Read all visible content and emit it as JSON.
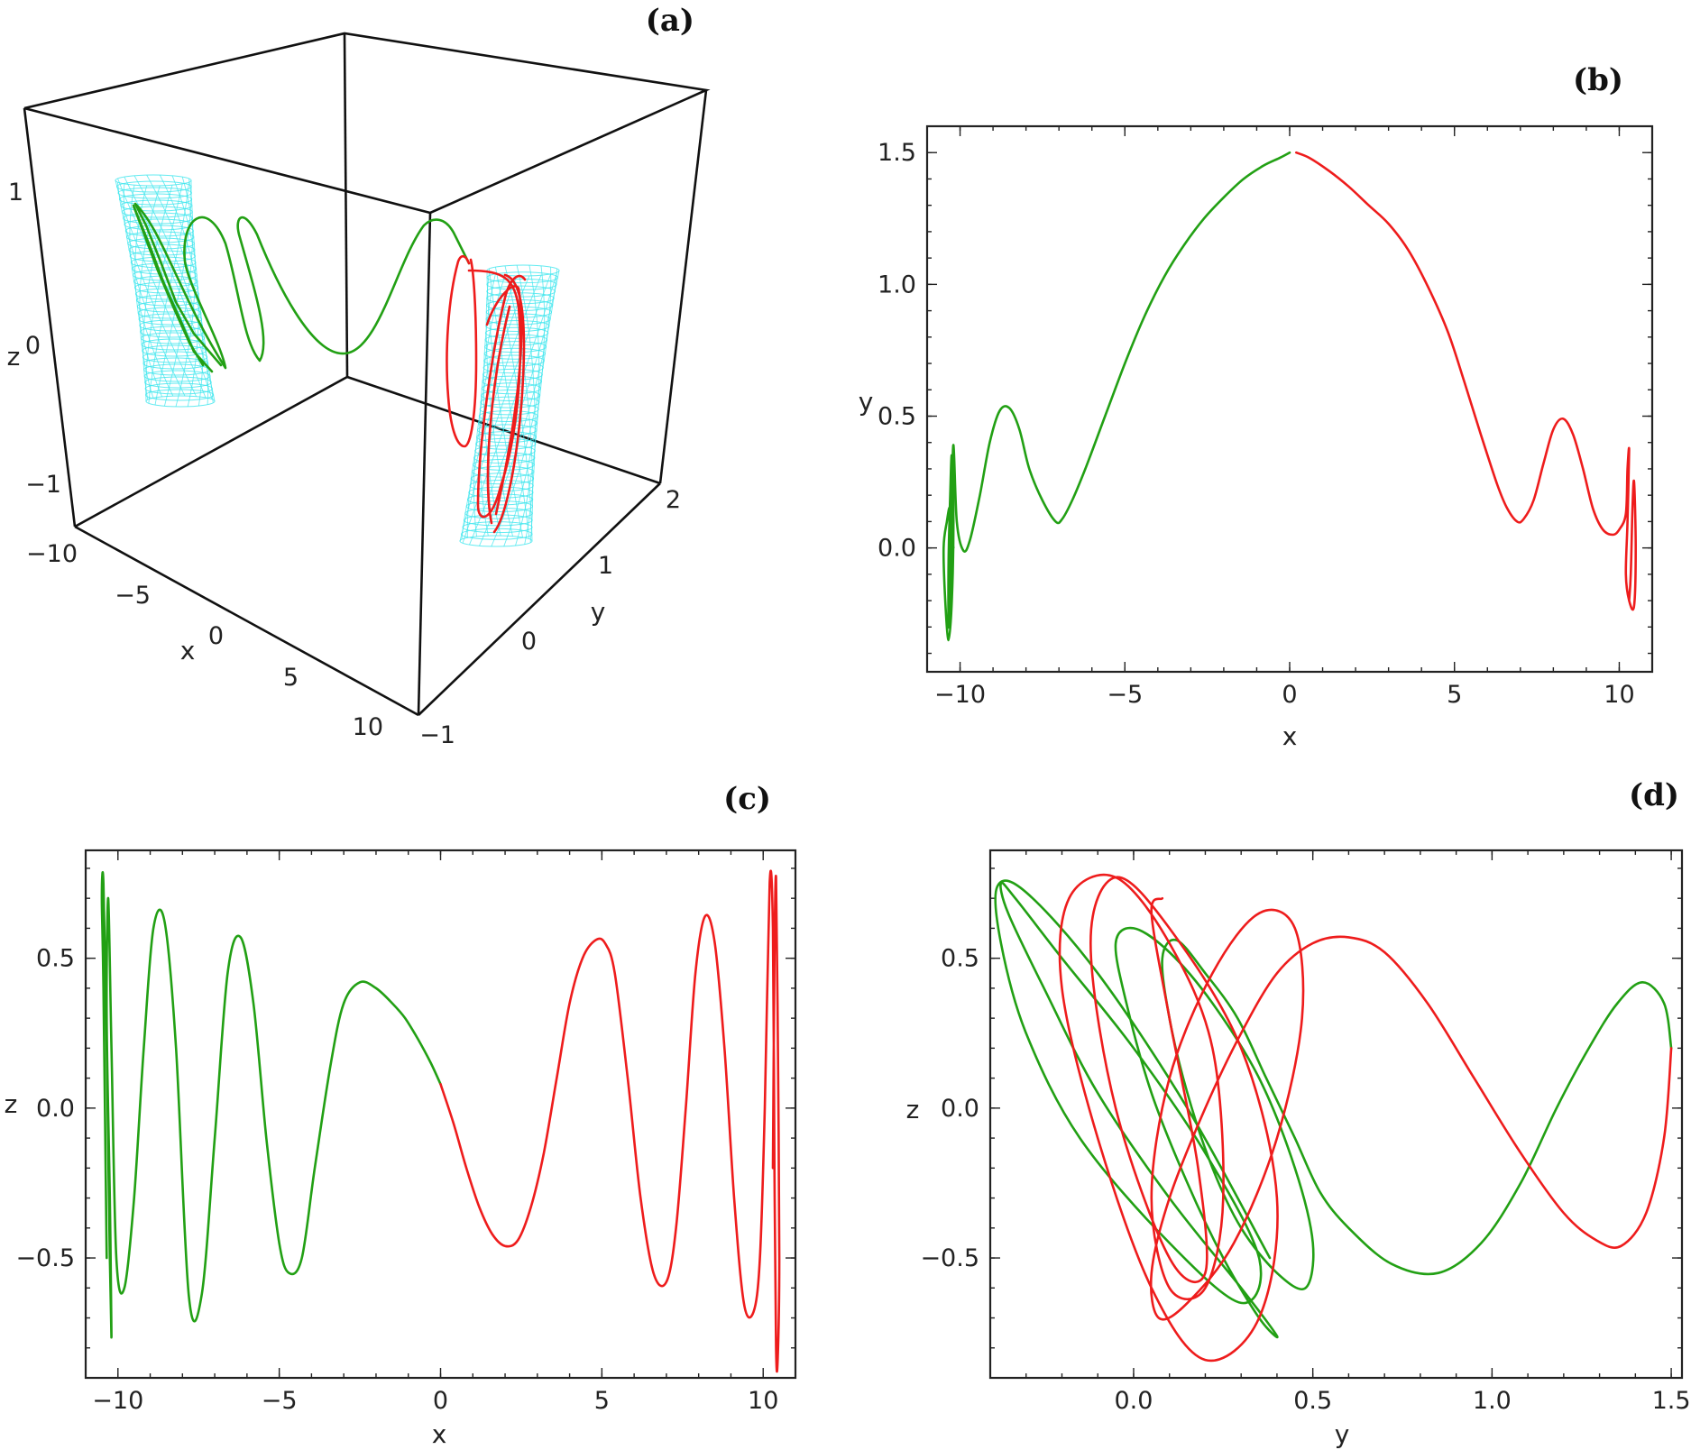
{
  "colors": {
    "green": "#22a014",
    "red": "#ee1c1c",
    "cyan": "#3de6ee"
  },
  "chart_data": [
    {
      "id": "a",
      "panel_label": "(a)",
      "type": "line",
      "projection": "3d",
      "xlabel": "x",
      "ylabel": "y",
      "zlabel": "z",
      "x_ticks": [
        "−10",
        "−5",
        "0",
        "5",
        "10"
      ],
      "y_ticks": [
        "−1",
        "0",
        "1",
        "2"
      ],
      "z_ticks": [
        "−1",
        "0",
        "1"
      ],
      "series": [
        {
          "color": "green",
          "description": "trajectory from x=-10 to x=0"
        },
        {
          "color": "red",
          "description": "trajectory from x=0 to x=10"
        }
      ],
      "surfaces": [
        {
          "color": "cyan",
          "shape": "mesh",
          "x": -10
        },
        {
          "color": "cyan",
          "shape": "mesh",
          "x": 10
        }
      ]
    },
    {
      "id": "b",
      "panel_label": "(b)",
      "type": "line",
      "xlabel": "x",
      "ylabel": "y",
      "xlim": [
        -11,
        11
      ],
      "ylim": [
        -0.47,
        1.6
      ],
      "x_ticks": [
        {
          "v": -10,
          "t": "−10"
        },
        {
          "v": -5,
          "t": "−5"
        },
        {
          "v": 0,
          "t": "0"
        },
        {
          "v": 5,
          "t": "5"
        },
        {
          "v": 10,
          "t": "10"
        }
      ],
      "y_ticks": [
        {
          "v": 0,
          "t": "0.0"
        },
        {
          "v": 0.5,
          "t": "0.5"
        },
        {
          "v": 1,
          "t": "1.0"
        },
        {
          "v": 1.5,
          "t": "1.5"
        }
      ],
      "series": [
        {
          "color": "green",
          "x": [
            -10.2,
            -10.3,
            -10.4,
            -10.5,
            -10.45,
            -10.35,
            -10.25,
            -10.2,
            -10.25,
            -10.3,
            -10.35,
            -10.35,
            -10.3,
            -10.25,
            -10.2,
            -10.1,
            -9.9,
            -9.7,
            -9.4,
            -9.1,
            -8.8,
            -8.5,
            -8.2,
            -7.9,
            -7.5,
            -7.1,
            -6.9,
            -6.6,
            -6.2,
            -5.6,
            -5.0,
            -4.4,
            -3.8,
            -3.2,
            -2.6,
            -2.0,
            -1.4,
            -0.8,
            -0.3,
            0.0
          ],
          "y": [
            0.0,
            0.15,
            0.1,
            0.0,
            -0.2,
            -0.35,
            -0.2,
            0.1,
            0.35,
            0.2,
            -0.05,
            -0.3,
            -0.15,
            0.15,
            0.39,
            0.1,
            -0.01,
            0.03,
            0.2,
            0.4,
            0.52,
            0.53,
            0.45,
            0.3,
            0.18,
            0.1,
            0.11,
            0.18,
            0.3,
            0.5,
            0.7,
            0.88,
            1.03,
            1.15,
            1.25,
            1.33,
            1.4,
            1.45,
            1.48,
            1.5
          ]
        },
        {
          "color": "red",
          "x": [
            0.2,
            0.6,
            1.2,
            1.8,
            2.4,
            3.0,
            3.6,
            4.2,
            4.8,
            5.3,
            5.8,
            6.3,
            6.6,
            6.9,
            7.1,
            7.4,
            7.7,
            8.0,
            8.3,
            8.6,
            8.9,
            9.2,
            9.5,
            9.8,
            10.0,
            10.2,
            10.25,
            10.3,
            10.25,
            10.2,
            10.3,
            10.45,
            10.5,
            10.45,
            10.4,
            10.35,
            10.3
          ],
          "y": [
            1.5,
            1.48,
            1.43,
            1.37,
            1.3,
            1.23,
            1.13,
            0.99,
            0.82,
            0.63,
            0.43,
            0.24,
            0.15,
            0.1,
            0.11,
            0.18,
            0.32,
            0.45,
            0.49,
            0.43,
            0.3,
            0.15,
            0.07,
            0.05,
            0.07,
            0.13,
            0.3,
            0.37,
            0.1,
            -0.1,
            -0.2,
            -0.22,
            0.0,
            0.25,
            0.15,
            -0.1,
            -0.2
          ]
        }
      ]
    },
    {
      "id": "c",
      "panel_label": "(c)",
      "type": "line",
      "xlabel": "x",
      "ylabel": "z",
      "xlim": [
        -11,
        11
      ],
      "ylim": [
        -0.9,
        0.86
      ],
      "x_ticks": [
        {
          "v": -10,
          "t": "−10"
        },
        {
          "v": -5,
          "t": "−5"
        },
        {
          "v": 0,
          "t": "0"
        },
        {
          "v": 5,
          "t": "5"
        },
        {
          "v": 10,
          "t": "10"
        }
      ],
      "y_ticks": [
        {
          "v": -0.5,
          "t": "−0.5"
        },
        {
          "v": 0,
          "t": "0.0"
        },
        {
          "v": 0.5,
          "t": "0.5"
        }
      ],
      "series": [
        {
          "color": "green",
          "x": [
            -10.35,
            -10.45,
            -10.5,
            -10.45,
            -10.35,
            -10.25,
            -10.2,
            -10.25,
            -10.35,
            -10.3,
            -10.2,
            -10.05,
            -9.8,
            -9.5,
            -9.2,
            -8.9,
            -8.55,
            -8.2,
            -7.8,
            -7.4,
            -7.0,
            -6.6,
            -6.2,
            -5.8,
            -5.4,
            -5.0,
            -4.7,
            -4.3,
            -3.9,
            -3.4,
            -3.0,
            -2.5,
            -2.0,
            -1.5,
            -1.1,
            -0.7,
            -0.3,
            0.0
          ],
          "y": [
            -0.5,
            0.4,
            0.7,
            0.75,
            0.2,
            -0.5,
            -0.76,
            -0.3,
            0.3,
            0.7,
            0.2,
            -0.5,
            -0.6,
            -0.3,
            0.2,
            0.6,
            0.62,
            0.2,
            -0.63,
            -0.62,
            -0.1,
            0.45,
            0.57,
            0.35,
            -0.1,
            -0.45,
            -0.55,
            -0.5,
            -0.2,
            0.15,
            0.35,
            0.42,
            0.4,
            0.35,
            0.3,
            0.23,
            0.15,
            0.08
          ]
        },
        {
          "color": "red",
          "x": [
            0.0,
            0.4,
            0.8,
            1.2,
            1.6,
            2.0,
            2.4,
            2.8,
            3.2,
            3.6,
            4.0,
            4.4,
            4.8,
            5.1,
            5.4,
            5.8,
            6.2,
            6.6,
            7.0,
            7.3,
            7.6,
            7.9,
            8.2,
            8.5,
            8.8,
            9.1,
            9.4,
            9.7,
            9.9,
            10.05,
            10.2,
            10.3,
            10.35,
            10.4,
            10.45,
            10.5,
            10.45,
            10.4,
            10.35,
            10.3
          ],
          "y": [
            0.08,
            -0.05,
            -0.2,
            -0.33,
            -0.42,
            -0.46,
            -0.44,
            -0.33,
            -0.15,
            0.1,
            0.35,
            0.5,
            0.56,
            0.55,
            0.45,
            0.1,
            -0.3,
            -0.55,
            -0.58,
            -0.4,
            0.0,
            0.45,
            0.64,
            0.55,
            0.2,
            -0.3,
            -0.65,
            -0.68,
            -0.5,
            0.0,
            0.75,
            0.6,
            -0.2,
            -0.8,
            -0.84,
            -0.5,
            0.3,
            0.77,
            0.5,
            -0.2
          ]
        }
      ]
    },
    {
      "id": "d",
      "panel_label": "(d)",
      "type": "line",
      "xlabel": "y",
      "ylabel": "z",
      "xlim": [
        -0.4,
        1.53
      ],
      "ylim": [
        -0.9,
        0.86
      ],
      "x_ticks": [
        {
          "v": 0,
          "t": "0.0"
        },
        {
          "v": 0.5,
          "t": "0.5"
        },
        {
          "v": 1,
          "t": "1.0"
        },
        {
          "v": 1.5,
          "t": "1.5"
        }
      ],
      "y_ticks": [
        {
          "v": -0.5,
          "t": "−0.5"
        },
        {
          "v": 0,
          "t": "0.0"
        },
        {
          "v": 0.5,
          "t": "0.5"
        }
      ],
      "series": [
        {
          "color": "green",
          "x": [
            1.5,
            1.48,
            1.42,
            1.35,
            1.27,
            1.18,
            1.08,
            0.97,
            0.85,
            0.72,
            0.6,
            0.52,
            0.45,
            0.37,
            0.29,
            0.2,
            0.12,
            0.08,
            0.1,
            0.15,
            0.22,
            0.3,
            0.4,
            0.48,
            0.5,
            0.45,
            0.35,
            0.22,
            0.1,
            0.0,
            -0.05,
            -0.02,
            0.05,
            0.15,
            0.25,
            0.35,
            0.4,
            0.3,
            0.1,
            -0.1,
            -0.25,
            -0.35,
            -0.37,
            -0.33,
            -0.2,
            0.0,
            0.2,
            0.35,
            0.3,
            0.1,
            -0.15,
            -0.3,
            -0.37,
            -0.38,
            -0.3,
            -0.1,
            0.15,
            0.38
          ],
          "y": [
            0.2,
            0.35,
            0.42,
            0.35,
            0.2,
            0.0,
            -0.25,
            -0.45,
            -0.55,
            -0.52,
            -0.4,
            -0.28,
            -0.1,
            0.1,
            0.3,
            0.45,
            0.56,
            0.5,
            0.3,
            0.05,
            -0.2,
            -0.4,
            -0.55,
            -0.6,
            -0.45,
            -0.2,
            0.1,
            0.35,
            0.52,
            0.6,
            0.55,
            0.35,
            0.05,
            -0.25,
            -0.5,
            -0.7,
            -0.76,
            -0.6,
            -0.3,
            0.05,
            0.4,
            0.65,
            0.75,
            0.7,
            0.5,
            0.2,
            -0.15,
            -0.5,
            -0.65,
            -0.45,
            -0.1,
            0.25,
            0.55,
            0.74,
            0.72,
            0.45,
            0.0,
            -0.5
          ]
        },
        {
          "color": "red",
          "x": [
            1.5,
            1.48,
            1.43,
            1.36,
            1.29,
            1.2,
            1.08,
            0.95,
            0.82,
            0.7,
            0.6,
            0.5,
            0.4,
            0.3,
            0.2,
            0.1,
            0.05,
            0.07,
            0.15,
            0.28,
            0.4,
            0.47,
            0.45,
            0.35,
            0.22,
            0.1,
            0.05,
            0.1,
            0.2,
            0.25,
            0.22,
            0.1,
            -0.05,
            -0.18,
            -0.2,
            -0.1,
            0.05,
            0.2,
            0.35,
            0.4,
            0.3,
            0.1,
            -0.05,
            -0.12,
            -0.05,
            0.1,
            0.2,
            0.18,
            0.1,
            0.05,
            0.08
          ],
          "y": [
            0.2,
            -0.1,
            -0.35,
            -0.46,
            -0.44,
            -0.35,
            -0.15,
            0.1,
            0.35,
            0.52,
            0.57,
            0.55,
            0.45,
            0.25,
            0.0,
            -0.3,
            -0.55,
            -0.7,
            -0.65,
            -0.45,
            -0.1,
            0.3,
            0.6,
            0.65,
            0.45,
            0.1,
            -0.3,
            -0.6,
            -0.6,
            -0.3,
            0.2,
            0.55,
            0.77,
            0.7,
            0.4,
            -0.1,
            -0.6,
            -0.84,
            -0.7,
            -0.3,
            0.2,
            0.6,
            0.77,
            0.55,
            0.0,
            -0.5,
            -0.55,
            -0.2,
            0.3,
            0.65,
            0.7
          ]
        }
      ]
    }
  ]
}
